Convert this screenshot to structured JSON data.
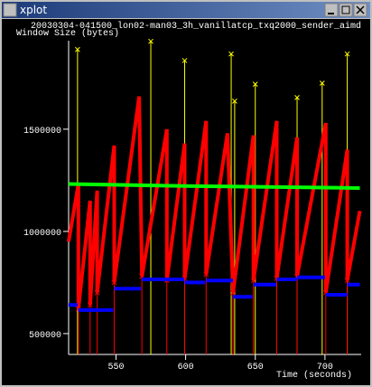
{
  "window": {
    "title": "xplot"
  },
  "chart_data": {
    "type": "line",
    "title": "20030304-041500_lon02-man03_3h_vanillatcp_txq2000_sender_aimd",
    "y_label": "Window Size (bytes)",
    "x_label": "Time (seconds)",
    "xlim": [
      516,
      726
    ],
    "xticks": [
      550,
      600,
      650,
      700
    ],
    "ylim": [
      398000,
      1933000
    ],
    "yticks": [
      500000,
      1000000,
      1500000
    ],
    "series": [
      {
        "color": "#ffff00",
        "style": "vline",
        "x": [
          522.4,
          575,
          599.3,
          632.7,
          635.2,
          650,
          680,
          698,
          716
        ],
        "values": [
          1890000,
          1930000,
          1836000,
          1868000,
          1637000,
          1720000,
          1655000,
          1725000,
          1868000
        ]
      },
      {
        "color": "#ff0000",
        "style": "vline",
        "x": [
          523,
          531.4,
          536.5,
          548.7,
          568.6,
          586.5,
          599.3,
          614.7,
          634,
          648.7,
          665.4,
          680,
          700.6,
          716
        ],
        "values": [
          620000,
          640000,
          700000,
          750000,
          780000,
          760000,
          770000,
          790000,
          700000,
          760000,
          770000,
          780000,
          700000,
          760000
        ]
      },
      {
        "color": "#ff0000",
        "style": "line",
        "x": [
          516,
          523,
          523,
          531.4,
          531.4,
          536.5,
          536.5,
          548.7,
          548.7,
          566.6,
          568.6,
          586.5,
          586.5,
          599.3,
          599.3,
          614.7,
          614.7,
          630,
          634,
          648.7,
          648.7,
          665.4,
          665.4,
          680,
          680,
          700.6,
          700.6,
          716,
          716,
          725
        ],
        "values": [
          950000,
          1230000,
          620000,
          1150000,
          640000,
          1200000,
          700000,
          1420000,
          750000,
          1660000,
          780000,
          1500000,
          760000,
          1430000,
          770000,
          1540000,
          790000,
          1480000,
          700000,
          1470000,
          760000,
          1540000,
          770000,
          1460000,
          780000,
          1530000,
          700000,
          1400000,
          760000,
          1100000
        ]
      },
      {
        "color": "#00ff00",
        "style": "line",
        "x": [
          516,
          600,
          725
        ],
        "values": [
          1232000,
          1222000,
          1212000
        ]
      },
      {
        "color": "#0000ff",
        "style": "line",
        "x": [
          516,
          522.5,
          522.5,
          523,
          548,
          548,
          548.7,
          568,
          568,
          568.6,
          599,
          599,
          599.3,
          614,
          614,
          614.7,
          634,
          634,
          634,
          648,
          648,
          648.7,
          665,
          665,
          665.4,
          680,
          680,
          680,
          700,
          700,
          700.6,
          716,
          716,
          716,
          725
        ],
        "values": [
          640000,
          640000,
          null,
          615000,
          615000,
          null,
          720000,
          720000,
          null,
          765000,
          765000,
          null,
          750000,
          750000,
          null,
          760000,
          760000,
          null,
          680000,
          680000,
          null,
          740000,
          740000,
          null,
          765000,
          765000,
          null,
          775000,
          775000,
          null,
          690000,
          690000,
          null,
          740000,
          740000
        ]
      }
    ]
  }
}
